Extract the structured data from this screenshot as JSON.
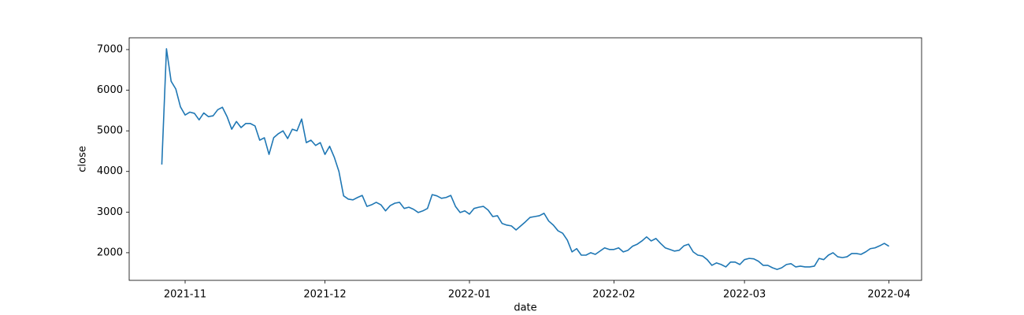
{
  "chart_data": {
    "type": "line",
    "x_label": "date",
    "y_label": "close",
    "x": [
      "2021-10-27",
      "2021-10-28",
      "2021-10-29",
      "2021-10-30",
      "2021-10-31",
      "2021-11-01",
      "2021-11-02",
      "2021-11-03",
      "2021-11-04",
      "2021-11-05",
      "2021-11-06",
      "2021-11-07",
      "2021-11-08",
      "2021-11-09",
      "2021-11-10",
      "2021-11-11",
      "2021-11-12",
      "2021-11-13",
      "2021-11-14",
      "2021-11-15",
      "2021-11-16",
      "2021-11-17",
      "2021-11-18",
      "2021-11-19",
      "2021-11-20",
      "2021-11-21",
      "2021-11-22",
      "2021-11-23",
      "2021-11-24",
      "2021-11-25",
      "2021-11-26",
      "2021-11-27",
      "2021-11-28",
      "2021-11-29",
      "2021-11-30",
      "2021-12-01",
      "2021-12-02",
      "2021-12-03",
      "2021-12-04",
      "2021-12-05",
      "2021-12-06",
      "2021-12-07",
      "2021-12-08",
      "2021-12-09",
      "2021-12-10",
      "2021-12-11",
      "2021-12-12",
      "2021-12-13",
      "2021-12-14",
      "2021-12-15",
      "2021-12-16",
      "2021-12-17",
      "2021-12-18",
      "2021-12-19",
      "2021-12-20",
      "2021-12-21",
      "2021-12-22",
      "2021-12-23",
      "2021-12-24",
      "2021-12-25",
      "2021-12-26",
      "2021-12-27",
      "2021-12-28",
      "2021-12-29",
      "2021-12-30",
      "2021-12-31",
      "2022-01-01",
      "2022-01-02",
      "2022-01-03",
      "2022-01-04",
      "2022-01-05",
      "2022-01-06",
      "2022-01-07",
      "2022-01-08",
      "2022-01-09",
      "2022-01-10",
      "2022-01-11",
      "2022-01-12",
      "2022-01-13",
      "2022-01-14",
      "2022-01-15",
      "2022-01-16",
      "2022-01-17",
      "2022-01-18",
      "2022-01-19",
      "2022-01-20",
      "2022-01-21",
      "2022-01-22",
      "2022-01-23",
      "2022-01-24",
      "2022-01-25",
      "2022-01-26",
      "2022-01-27",
      "2022-01-28",
      "2022-01-29",
      "2022-01-30",
      "2022-01-31",
      "2022-02-01",
      "2022-02-02",
      "2022-02-03",
      "2022-02-04",
      "2022-02-05",
      "2022-02-06",
      "2022-02-07",
      "2022-02-08",
      "2022-02-09",
      "2022-02-10",
      "2022-02-11",
      "2022-02-12",
      "2022-02-13",
      "2022-02-14",
      "2022-02-15",
      "2022-02-16",
      "2022-02-17",
      "2022-02-18",
      "2022-02-19",
      "2022-02-20",
      "2022-02-21",
      "2022-02-22",
      "2022-02-23",
      "2022-02-24",
      "2022-02-25",
      "2022-02-26",
      "2022-02-27",
      "2022-02-28",
      "2022-03-01",
      "2022-03-02",
      "2022-03-03",
      "2022-03-04",
      "2022-03-05",
      "2022-03-06",
      "2022-03-07",
      "2022-03-08",
      "2022-03-09",
      "2022-03-10",
      "2022-03-11",
      "2022-03-12",
      "2022-03-13",
      "2022-03-14",
      "2022-03-15",
      "2022-03-16",
      "2022-03-17",
      "2022-03-18",
      "2022-03-19",
      "2022-03-20",
      "2022-03-21",
      "2022-03-22",
      "2022-03-23",
      "2022-03-24",
      "2022-03-25",
      "2022-03-26",
      "2022-03-27",
      "2022-03-28",
      "2022-03-29",
      "2022-03-30",
      "2022-03-31",
      "2022-04-01"
    ],
    "values": [
      4170,
      7020,
      6220,
      6030,
      5590,
      5390,
      5460,
      5430,
      5270,
      5440,
      5350,
      5370,
      5520,
      5580,
      5350,
      5040,
      5230,
      5080,
      5180,
      5180,
      5120,
      4770,
      4830,
      4420,
      4830,
      4930,
      5000,
      4810,
      5040,
      5000,
      5290,
      4710,
      4770,
      4640,
      4710,
      4420,
      4620,
      4350,
      4000,
      3400,
      3320,
      3300,
      3360,
      3410,
      3140,
      3180,
      3240,
      3180,
      3030,
      3160,
      3220,
      3240,
      3090,
      3120,
      3070,
      2990,
      3030,
      3090,
      3430,
      3400,
      3340,
      3360,
      3410,
      3140,
      2990,
      3030,
      2950,
      3090,
      3120,
      3140,
      3050,
      2890,
      2910,
      2720,
      2680,
      2660,
      2560,
      2660,
      2760,
      2870,
      2890,
      2910,
      2970,
      2780,
      2680,
      2540,
      2480,
      2310,
      2020,
      2100,
      1940,
      1940,
      2000,
      1960,
      2040,
      2120,
      2080,
      2080,
      2120,
      2020,
      2060,
      2160,
      2210,
      2290,
      2390,
      2290,
      2350,
      2230,
      2120,
      2080,
      2040,
      2060,
      2170,
      2210,
      2020,
      1940,
      1920,
      1830,
      1690,
      1750,
      1710,
      1650,
      1770,
      1770,
      1710,
      1830,
      1860,
      1850,
      1790,
      1690,
      1690,
      1630,
      1590,
      1630,
      1710,
      1730,
      1650,
      1670,
      1650,
      1650,
      1670,
      1860,
      1830,
      1940,
      2000,
      1900,
      1880,
      1900,
      1980,
      1980,
      1960,
      2020,
      2100,
      2120,
      2170,
      2230,
      2160
    ],
    "color": "#1f77b4",
    "xlim": [
      "2021-10-20",
      "2022-04-08"
    ],
    "xticks": [
      "2021-11",
      "2021-12",
      "2022-01",
      "2022-02",
      "2022-03",
      "2022-04"
    ],
    "ylim": [
      1320,
      7290
    ],
    "yticks": [
      2000,
      3000,
      4000,
      5000,
      6000,
      7000
    ],
    "grid": false
  }
}
